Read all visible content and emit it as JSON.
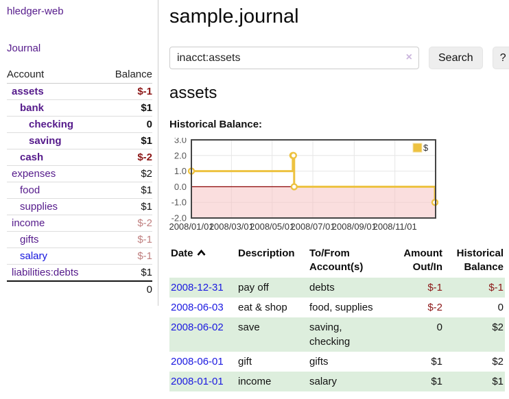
{
  "app": {
    "brand": "hledger-web"
  },
  "theme": {
    "accent_purple": "#551a8b",
    "link_blue": "#1a18e0",
    "negative_red": "#8c1616",
    "dim_negative_red": "#c08080",
    "row_stripe_green": "#ddeedd"
  },
  "sidebar": {
    "nav_journal": "Journal",
    "headers": {
      "account": "Account",
      "balance": "Balance"
    },
    "accounts": [
      {
        "name": "assets",
        "balance": "$-1",
        "depth": 1
      },
      {
        "name": "bank",
        "balance": "$1",
        "depth": 2
      },
      {
        "name": "checking",
        "balance": "0",
        "depth": 3
      },
      {
        "name": "saving",
        "balance": "$1",
        "depth": 3
      },
      {
        "name": "cash",
        "balance": "$-2",
        "depth": 2
      },
      {
        "name": "expenses",
        "balance": "$2",
        "depth": 1
      },
      {
        "name": "food",
        "balance": "$1",
        "depth": 2
      },
      {
        "name": "supplies",
        "balance": "$1",
        "depth": 2
      },
      {
        "name": "income",
        "balance": "$-2",
        "depth": 1
      },
      {
        "name": "gifts",
        "balance": "$-1",
        "depth": 2
      },
      {
        "name": "salary",
        "balance": "$-1",
        "depth": 2
      },
      {
        "name": "liabilities:debts",
        "balance": "$1",
        "depth": 1
      }
    ],
    "total": "0"
  },
  "main": {
    "title": "sample.journal",
    "search": {
      "value": "inacct:assets",
      "clear_icon": "×",
      "button_label": "Search",
      "help_label": "?"
    },
    "heading": "assets",
    "chart_label": "Historical Balance:",
    "register": {
      "sort": "ascending",
      "headers": {
        "date": "Date",
        "description": "Description",
        "tofrom_lines": [
          "To/From",
          "Account(s)"
        ],
        "amount_lines": [
          "Amount",
          "Out/In"
        ],
        "balance_lines": [
          "Historical",
          "Balance"
        ]
      },
      "rows": [
        {
          "date": "2008-12-31",
          "description": "pay off",
          "accounts": "debts",
          "amount": "$-1",
          "balance": "$-1"
        },
        {
          "date": "2008-06-03",
          "description": "eat & shop",
          "accounts": "food, supplies",
          "amount": "$-2",
          "balance": "0"
        },
        {
          "date": "2008-06-02",
          "description": "save",
          "accounts": "saving, checking",
          "amount": "0",
          "balance": "$2"
        },
        {
          "date": "2008-06-01",
          "description": "gift",
          "accounts": "gifts",
          "amount": "$1",
          "balance": "$2"
        },
        {
          "date": "2008-01-01",
          "description": "income",
          "accounts": "salary",
          "amount": "$1",
          "balance": "$1"
        }
      ]
    }
  },
  "chart_data": {
    "type": "line",
    "step": true,
    "title": "Historical Balance:",
    "series": [
      {
        "name": "$",
        "points": [
          [
            "2008-01-01",
            1
          ],
          [
            "2008-06-01",
            2
          ],
          [
            "2008-06-02",
            2
          ],
          [
            "2008-06-03",
            0
          ],
          [
            "2008-12-31",
            -1
          ]
        ]
      }
    ],
    "ylim": [
      -2,
      3
    ],
    "yticks": [
      3,
      2,
      1,
      0,
      -1,
      -2
    ],
    "xtick_labels": [
      "2008/01/01",
      "2008/03/01",
      "2008/05/01",
      "2008/07/01",
      "2008/09/01",
      "2008/11/01"
    ],
    "x_domain": [
      "2008-01-01",
      "2009-01-01"
    ],
    "legend": {
      "position": "top-right",
      "entries": [
        "$"
      ]
    },
    "grid": true,
    "colors": {
      "line": "#edc240",
      "marker_fill": "#ffffff",
      "negative_region": "#f6c2c2",
      "zero_line": "#8b0000",
      "grid": "#e6e6e6",
      "border": "#444444"
    }
  }
}
